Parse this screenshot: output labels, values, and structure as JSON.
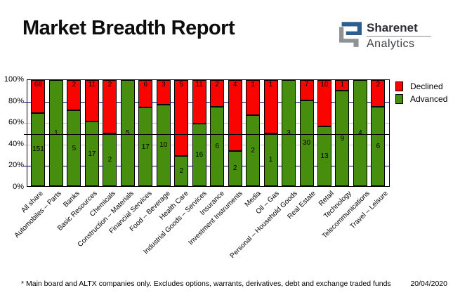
{
  "header": {
    "title": "Market Breadth Report",
    "logo": {
      "brand": "Sharenet",
      "sub": "Analytics",
      "blue": "#2e5e8c",
      "gray": "#8f9193"
    }
  },
  "footer": {
    "note": "* Main board and ALTX companies only. Excludes options, warrants, derivatives, debt and exchange traded funds",
    "date": "20/04/2020"
  },
  "chart_data": {
    "type": "bar",
    "stacked": true,
    "normalized": "percent_of_total",
    "title": "Market Breadth Report",
    "categories": [
      "All share",
      "Automobiles – Parts",
      "Banks",
      "Basic Resources",
      "Chemicals",
      "Construction – Materials",
      "Financial Services",
      "Food – Beverage",
      "Health Care",
      "Industrial Goods – Services",
      "Insurance",
      "Investment Instruments",
      "Media",
      "Oil – Gas",
      "Personal – Household Goods",
      "Real Estate",
      "Retail",
      "Technology",
      "Telecommunications",
      "Travel – Leisure"
    ],
    "series": [
      {
        "name": "Declined",
        "color": "#fa0400",
        "values": [
          68,
          0,
          2,
          11,
          2,
          0,
          6,
          3,
          5,
          11,
          2,
          4,
          1,
          1,
          0,
          7,
          10,
          1,
          0,
          2
        ]
      },
      {
        "name": "Advanced",
        "color": "#478d0e",
        "values": [
          151,
          1,
          5,
          17,
          2,
          5,
          17,
          10,
          2,
          16,
          6,
          2,
          2,
          1,
          3,
          30,
          13,
          9,
          4,
          6
        ]
      }
    ],
    "ylim": [
      0,
      100
    ],
    "yticks": [
      {
        "label": "0%",
        "value": 0
      },
      {
        "label": "20%",
        "value": 20
      },
      {
        "label": "40%",
        "value": 40
      },
      {
        "label": "60%",
        "value": 60
      },
      {
        "label": "80%",
        "value": 80
      },
      {
        "label": "100%",
        "value": 100
      }
    ],
    "gridlines": [
      {
        "value": 20,
        "color": "#000080"
      },
      {
        "value": 40,
        "color": "#c6c6c6"
      },
      {
        "value": 60,
        "color": "#c6c6c6"
      },
      {
        "value": 80,
        "color": "#000080"
      }
    ],
    "midline": 50,
    "grid_on": true,
    "legend_position": "top-right",
    "legend_entries": [
      "Declined",
      "Advanced"
    ]
  }
}
